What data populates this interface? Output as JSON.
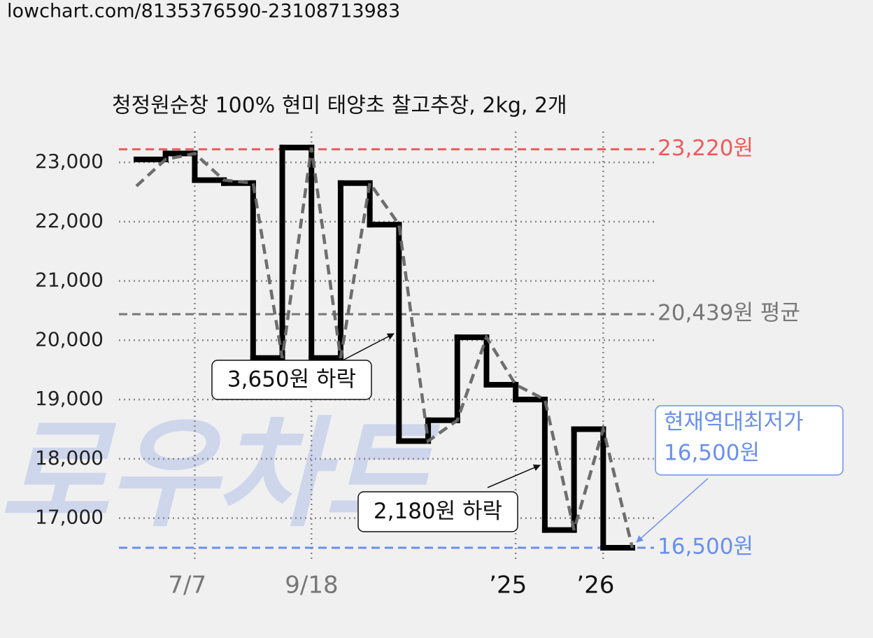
{
  "header": {
    "url": "lowchart.com/8135376590-23108713983"
  },
  "chart_data": {
    "type": "line",
    "title": "청정원순창 100% 현미 태양초 찰고추장, 2kg, 2개",
    "watermark": "로우차트",
    "xlim": [
      0,
      17
    ],
    "xticks": [
      {
        "value": 2,
        "label": "7/7",
        "color": "#777777"
      },
      {
        "value": 6,
        "label": "9/18",
        "color": "#777777"
      },
      {
        "value": 13,
        "label": "’25",
        "color": "#111111"
      },
      {
        "value": 16,
        "label": "’26",
        "color": "#111111"
      }
    ],
    "ylim": [
      16300,
      23520
    ],
    "yticks": [
      {
        "value": 17000,
        "label": "17,000"
      },
      {
        "value": 18000,
        "label": "18,000"
      },
      {
        "value": 19000,
        "label": "19,000"
      },
      {
        "value": 20000,
        "label": "20,000"
      },
      {
        "value": 21000,
        "label": "21,000"
      },
      {
        "value": 22000,
        "label": "22,000"
      },
      {
        "value": 23000,
        "label": "23,000"
      }
    ],
    "grid": true,
    "series": [
      {
        "style": "step",
        "color": "#000000",
        "x": [
          0,
          1,
          2,
          3,
          4,
          5,
          6,
          7,
          8,
          9,
          10,
          11,
          12,
          13,
          14,
          15,
          16,
          17
        ],
        "values": [
          23050,
          23150,
          22700,
          22650,
          19700,
          23250,
          19700,
          22650,
          21950,
          18300,
          18650,
          20050,
          19250,
          19000,
          16800,
          18500,
          16500,
          16500
        ]
      },
      {
        "style": "dashed",
        "color": "#666666",
        "x": [
          0,
          1,
          2,
          3,
          4,
          5,
          6,
          7,
          8,
          9,
          10,
          11,
          12,
          13,
          14,
          15,
          16,
          17
        ],
        "values": [
          22600,
          23050,
          23150,
          22700,
          22650,
          19700,
          23250,
          19700,
          22650,
          21950,
          18300,
          18650,
          20050,
          19250,
          19000,
          16800,
          18500,
          16500
        ]
      }
    ],
    "reference_lines": [
      {
        "value": 23220,
        "label": "23,220원",
        "color": "#f05a5a"
      },
      {
        "value": 20439,
        "label": "20,439원 평균",
        "color": "#777777"
      },
      {
        "value": 16500,
        "label": "16,500원",
        "color": "#6a8ff0"
      }
    ],
    "annotations": [
      {
        "lines": [
          "3,650원 하락"
        ],
        "color": "#111111"
      },
      {
        "lines": [
          "2,180원 하락"
        ],
        "color": "#111111"
      },
      {
        "lines": [
          "현재역대최저가",
          "16,500원"
        ],
        "color": "#6a8ff0"
      }
    ]
  }
}
